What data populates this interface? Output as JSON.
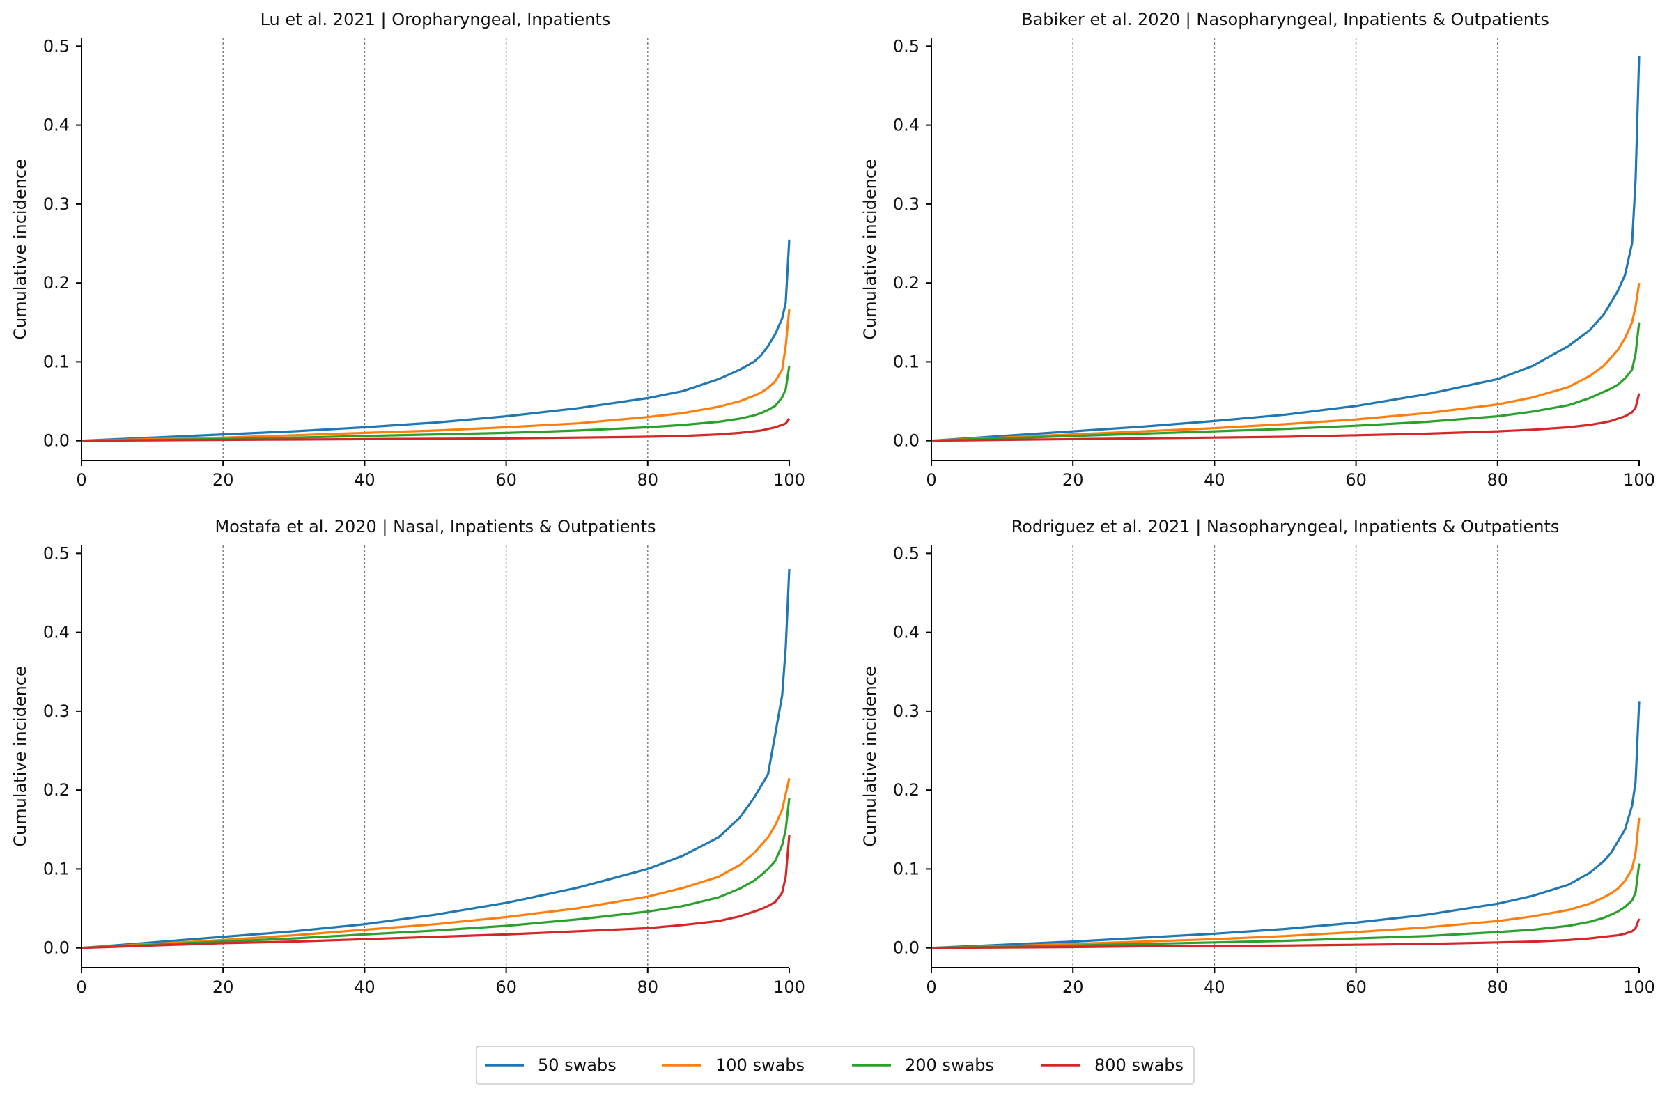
{
  "chart_data": [
    {
      "type": "line",
      "title": "Lu et al. 2021 | Oropharyngeal, Inpatients",
      "xlabel": "",
      "ylabel": "Cumulative incidence",
      "xlim": [
        0,
        100
      ],
      "ylim": [
        -0.025,
        0.51
      ],
      "xticks": [
        0,
        20,
        40,
        60,
        80,
        100
      ],
      "yticks": [
        0.0,
        0.1,
        0.2,
        0.3,
        0.4,
        0.5
      ],
      "vlines": [
        20,
        40,
        60,
        80
      ],
      "grid": false,
      "x": [
        0,
        10,
        20,
        30,
        40,
        50,
        60,
        70,
        80,
        85,
        90,
        93,
        95,
        96,
        97,
        98,
        99,
        99.5,
        100
      ],
      "series": [
        {
          "name": "50 swabs",
          "values": [
            0,
            0.004,
            0.008,
            0.012,
            0.017,
            0.023,
            0.031,
            0.041,
            0.054,
            0.063,
            0.078,
            0.09,
            0.1,
            0.108,
            0.12,
            0.135,
            0.155,
            0.175,
            0.255
          ]
        },
        {
          "name": "100 swabs",
          "values": [
            0,
            0.002,
            0.004,
            0.007,
            0.01,
            0.013,
            0.017,
            0.022,
            0.03,
            0.035,
            0.043,
            0.05,
            0.057,
            0.061,
            0.067,
            0.075,
            0.09,
            0.12,
            0.167
          ]
        },
        {
          "name": "200 swabs",
          "values": [
            0,
            0.001,
            0.002,
            0.004,
            0.006,
            0.008,
            0.01,
            0.013,
            0.017,
            0.02,
            0.024,
            0.028,
            0.032,
            0.035,
            0.039,
            0.044,
            0.055,
            0.065,
            0.095
          ]
        },
        {
          "name": "800 swabs",
          "values": [
            0,
            0.0005,
            0.001,
            0.0015,
            0.002,
            0.0025,
            0.003,
            0.004,
            0.005,
            0.006,
            0.008,
            0.01,
            0.012,
            0.013,
            0.015,
            0.017,
            0.02,
            0.022,
            0.028
          ]
        }
      ]
    },
    {
      "type": "line",
      "title": "Babiker et al. 2020 | Nasopharyngeal, Inpatients & Outpatients",
      "xlabel": "",
      "ylabel": "Cumulative incidence",
      "xlim": [
        0,
        100
      ],
      "ylim": [
        -0.025,
        0.51
      ],
      "xticks": [
        0,
        20,
        40,
        60,
        80,
        100
      ],
      "yticks": [
        0.0,
        0.1,
        0.2,
        0.3,
        0.4,
        0.5
      ],
      "vlines": [
        20,
        40,
        60,
        80
      ],
      "grid": false,
      "x": [
        0,
        10,
        20,
        30,
        40,
        50,
        60,
        70,
        80,
        85,
        90,
        93,
        95,
        96,
        97,
        98,
        99,
        99.5,
        100
      ],
      "series": [
        {
          "name": "50 swabs",
          "values": [
            0,
            0.006,
            0.012,
            0.018,
            0.025,
            0.033,
            0.044,
            0.059,
            0.078,
            0.095,
            0.12,
            0.14,
            0.16,
            0.175,
            0.19,
            0.21,
            0.25,
            0.33,
            0.488
          ]
        },
        {
          "name": "100 swabs",
          "values": [
            0,
            0.004,
            0.008,
            0.012,
            0.016,
            0.021,
            0.027,
            0.035,
            0.046,
            0.055,
            0.068,
            0.082,
            0.095,
            0.105,
            0.115,
            0.13,
            0.15,
            0.17,
            0.2
          ]
        },
        {
          "name": "200 swabs",
          "values": [
            0,
            0.003,
            0.006,
            0.009,
            0.012,
            0.015,
            0.019,
            0.024,
            0.031,
            0.037,
            0.045,
            0.054,
            0.062,
            0.066,
            0.071,
            0.079,
            0.09,
            0.11,
            0.15
          ]
        },
        {
          "name": "800 swabs",
          "values": [
            0,
            0.001,
            0.002,
            0.003,
            0.004,
            0.005,
            0.007,
            0.009,
            0.012,
            0.014,
            0.017,
            0.02,
            0.023,
            0.025,
            0.028,
            0.031,
            0.036,
            0.042,
            0.06
          ]
        }
      ]
    },
    {
      "type": "line",
      "title": "Mostafa et al. 2020 | Nasal, Inpatients & Outpatients",
      "xlabel": "",
      "ylabel": "Cumulative incidence",
      "xlim": [
        0,
        100
      ],
      "ylim": [
        -0.025,
        0.51
      ],
      "xticks": [
        0,
        20,
        40,
        60,
        80,
        100
      ],
      "yticks": [
        0.0,
        0.1,
        0.2,
        0.3,
        0.4,
        0.5
      ],
      "vlines": [
        20,
        40,
        60,
        80
      ],
      "grid": false,
      "x": [
        0,
        10,
        20,
        30,
        40,
        50,
        60,
        70,
        80,
        85,
        90,
        93,
        95,
        96,
        97,
        98,
        99,
        99.5,
        100
      ],
      "series": [
        {
          "name": "50 swabs",
          "values": [
            0,
            0.007,
            0.014,
            0.021,
            0.03,
            0.042,
            0.057,
            0.076,
            0.1,
            0.117,
            0.14,
            0.165,
            0.19,
            0.205,
            0.22,
            0.27,
            0.32,
            0.38,
            0.48
          ]
        },
        {
          "name": "100 swabs",
          "values": [
            0,
            0.005,
            0.01,
            0.016,
            0.023,
            0.03,
            0.039,
            0.05,
            0.065,
            0.076,
            0.09,
            0.105,
            0.12,
            0.13,
            0.14,
            0.155,
            0.175,
            0.195,
            0.215
          ]
        },
        {
          "name": "200 swabs",
          "values": [
            0,
            0.004,
            0.008,
            0.012,
            0.017,
            0.022,
            0.028,
            0.036,
            0.046,
            0.053,
            0.064,
            0.075,
            0.085,
            0.092,
            0.1,
            0.11,
            0.13,
            0.15,
            0.19
          ]
        },
        {
          "name": "800 swabs",
          "values": [
            0,
            0.003,
            0.006,
            0.008,
            0.011,
            0.014,
            0.017,
            0.021,
            0.025,
            0.029,
            0.034,
            0.04,
            0.046,
            0.049,
            0.053,
            0.058,
            0.07,
            0.09,
            0.143
          ]
        }
      ]
    },
    {
      "type": "line",
      "title": "Rodriguez et al. 2021 | Nasopharyngeal, Inpatients & Outpatients",
      "xlabel": "",
      "ylabel": "Cumulative incidence",
      "xlim": [
        0,
        100
      ],
      "ylim": [
        -0.025,
        0.51
      ],
      "xticks": [
        0,
        20,
        40,
        60,
        80,
        100
      ],
      "yticks": [
        0.0,
        0.1,
        0.2,
        0.3,
        0.4,
        0.5
      ],
      "vlines": [
        20,
        40,
        60,
        80
      ],
      "grid": false,
      "x": [
        0,
        10,
        20,
        30,
        40,
        50,
        60,
        70,
        80,
        85,
        90,
        93,
        95,
        96,
        97,
        98,
        99,
        99.5,
        100
      ],
      "series": [
        {
          "name": "50 swabs",
          "values": [
            0,
            0.004,
            0.008,
            0.013,
            0.018,
            0.024,
            0.032,
            0.042,
            0.056,
            0.066,
            0.08,
            0.095,
            0.11,
            0.12,
            0.135,
            0.15,
            0.18,
            0.21,
            0.312
          ]
        },
        {
          "name": "100 swabs",
          "values": [
            0,
            0.002,
            0.005,
            0.008,
            0.011,
            0.015,
            0.02,
            0.026,
            0.034,
            0.04,
            0.048,
            0.056,
            0.064,
            0.069,
            0.075,
            0.085,
            0.1,
            0.12,
            0.165
          ]
        },
        {
          "name": "200 swabs",
          "values": [
            0,
            0.0015,
            0.003,
            0.005,
            0.007,
            0.009,
            0.012,
            0.015,
            0.02,
            0.023,
            0.028,
            0.033,
            0.038,
            0.042,
            0.046,
            0.052,
            0.06,
            0.07,
            0.107
          ]
        },
        {
          "name": "800 swabs",
          "values": [
            0,
            0.0005,
            0.001,
            0.002,
            0.0025,
            0.003,
            0.004,
            0.005,
            0.007,
            0.008,
            0.01,
            0.012,
            0.014,
            0.015,
            0.016,
            0.018,
            0.021,
            0.025,
            0.037
          ]
        }
      ]
    }
  ],
  "legend": {
    "placement": "bottom-center",
    "entries": [
      {
        "label": "50 swabs",
        "color": "#1f77b4"
      },
      {
        "label": "100 swabs",
        "color": "#ff7f0e"
      },
      {
        "label": "200 swabs",
        "color": "#2ca02c"
      },
      {
        "label": "800 swabs",
        "color": "#d62728"
      }
    ]
  },
  "colors": {
    "axis": "#000000",
    "vline": "#808080"
  }
}
